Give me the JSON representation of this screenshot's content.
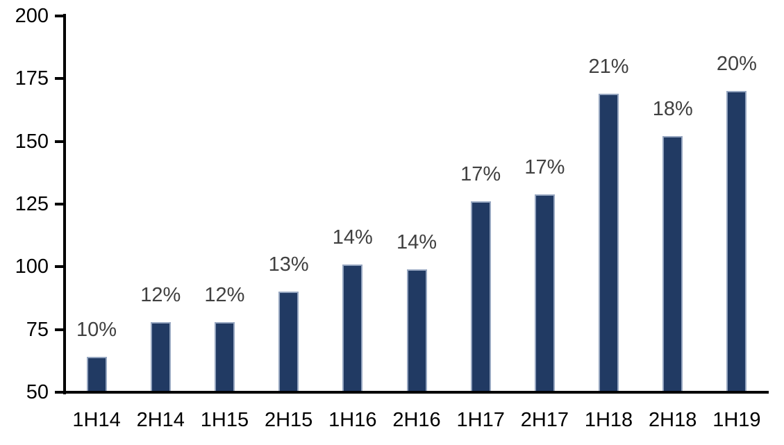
{
  "chart_data": {
    "type": "bar",
    "title": "",
    "categories": [
      "1H14",
      "2H14",
      "1H15",
      "2H15",
      "1H16",
      "2H16",
      "1H17",
      "2H17",
      "1H18",
      "2H18",
      "1H19"
    ],
    "values": [
      64,
      78,
      78,
      90,
      101,
      99,
      126,
      129,
      169,
      152,
      170
    ],
    "bar_labels": [
      "10%",
      "12%",
      "12%",
      "13%",
      "14%",
      "14%",
      "17%",
      "17%",
      "21%",
      "18%",
      "20%"
    ],
    "xlabel": "",
    "ylabel": "",
    "ylim": [
      50,
      200
    ],
    "yticks": [
      200,
      175,
      150,
      125,
      100,
      75,
      50
    ],
    "grid": false,
    "legend_position": "none",
    "colors": {
      "bar_fill": "#213A63",
      "bar_border": "#96A6C0",
      "value_label": "#404040",
      "axis": "#000000",
      "background": "#ffffff"
    }
  }
}
